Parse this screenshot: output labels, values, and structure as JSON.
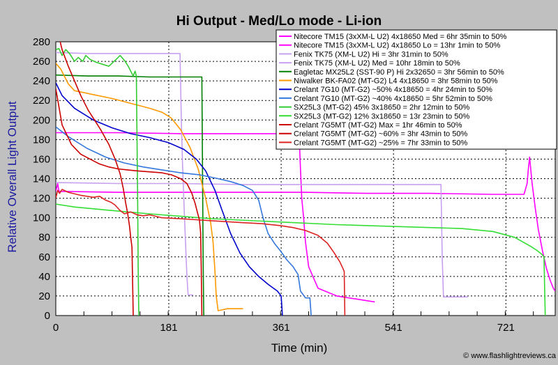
{
  "chart_data": {
    "type": "line",
    "title": "Hi Output - Med/Lo mode - Li-ion",
    "xlabel": "Time (min)",
    "ylabel": "Relative Overall Light Output",
    "xlim": [
      0,
      800
    ],
    "ylim": [
      0,
      280
    ],
    "xticks": [
      0,
      181,
      361,
      541,
      721
    ],
    "yticks": [
      0,
      20,
      40,
      60,
      80,
      100,
      120,
      140,
      160,
      180,
      200,
      220,
      240,
      260,
      280
    ],
    "grid": true,
    "legend_position": "top-right",
    "credit": "© www.flashlightreviews.ca",
    "series": [
      {
        "name": "Nitecore TM15 (3xXM-L U2) 4x18650 Med = 6hr 35min to 50%",
        "color": "#ff00ff",
        "points": [
          [
            0,
            187
          ],
          [
            100,
            187
          ],
          [
            200,
            186
          ],
          [
            300,
            186
          ],
          [
            375,
            186
          ],
          [
            385,
            184
          ],
          [
            390,
            180
          ],
          [
            392,
            150
          ],
          [
            394,
            120
          ],
          [
            397,
            100
          ],
          [
            400,
            75
          ],
          [
            405,
            50
          ],
          [
            420,
            28
          ],
          [
            450,
            20
          ],
          [
            480,
            17
          ],
          [
            500,
            15
          ],
          [
            511,
            14
          ]
        ]
      },
      {
        "name": "Nitecore TM15 (3xXM-L U2) 4x18650 Lo = 13hr 1min to 50%",
        "color": "#ff00ff",
        "points": [
          [
            0,
            127
          ],
          [
            3,
            135
          ],
          [
            5,
            127
          ],
          [
            100,
            126
          ],
          [
            200,
            126
          ],
          [
            300,
            126
          ],
          [
            400,
            126
          ],
          [
            500,
            125
          ],
          [
            600,
            125
          ],
          [
            700,
            124
          ],
          [
            750,
            124
          ],
          [
            755,
            135
          ],
          [
            757,
            150
          ],
          [
            759,
            162
          ],
          [
            763,
            135
          ],
          [
            768,
            110
          ],
          [
            773,
            88
          ],
          [
            780,
            65
          ],
          [
            786,
            48
          ],
          [
            792,
            36
          ],
          [
            797,
            28
          ],
          [
            800,
            25
          ]
        ]
      },
      {
        "name": "Fenix TK75 (XM-L U2) Hi = 3hr 31min to 50%",
        "color": "#c8a0f0",
        "points": [
          [
            0,
            269
          ],
          [
            50,
            268
          ],
          [
            100,
            268
          ],
          [
            150,
            268
          ],
          [
            199,
            268
          ],
          [
            201,
            202
          ],
          [
            203,
            155
          ],
          [
            206,
            102
          ],
          [
            210,
            40
          ],
          [
            212,
            21
          ],
          [
            220,
            21
          ]
        ]
      },
      {
        "name": "Fenix TK75 (XM-L U2) Med = 10hr 18min to 50%",
        "color": "#c8a0f0",
        "points": [
          [
            0,
            136
          ],
          [
            100,
            135
          ],
          [
            200,
            135
          ],
          [
            300,
            134
          ],
          [
            400,
            134
          ],
          [
            500,
            134
          ],
          [
            600,
            134
          ],
          [
            617,
            134
          ],
          [
            619,
            60
          ],
          [
            621,
            19
          ],
          [
            660,
            19
          ]
        ]
      },
      {
        "name": "Eagletac MX25L2 (SST-90 P) Hi 2x32650 = 3hr 56min to 50%",
        "color": "#008000",
        "points": [
          [
            0,
            246
          ],
          [
            50,
            245
          ],
          [
            100,
            245
          ],
          [
            150,
            244
          ],
          [
            200,
            244
          ],
          [
            234,
            244
          ],
          [
            236,
            60
          ],
          [
            237,
            0
          ]
        ]
      },
      {
        "name": "Niwalker BK-FA02 (MT-G2) L4 4x18650 = 3hr 58min to 50%",
        "color": "#ff9900",
        "points": [
          [
            0,
            258
          ],
          [
            8,
            252
          ],
          [
            20,
            237
          ],
          [
            30,
            230
          ],
          [
            60,
            226
          ],
          [
            90,
            222
          ],
          [
            120,
            217
          ],
          [
            150,
            212
          ],
          [
            170,
            208
          ],
          [
            185,
            202
          ],
          [
            200,
            190
          ],
          [
            215,
            172
          ],
          [
            228,
            150
          ],
          [
            240,
            120
          ],
          [
            248,
            95
          ],
          [
            252,
            75
          ],
          [
            255,
            45
          ],
          [
            257,
            20
          ],
          [
            260,
            5
          ],
          [
            275,
            7
          ],
          [
            290,
            7
          ],
          [
            300,
            7
          ]
        ]
      },
      {
        "name": "Crelant 7G10 (MT-G2) ~50% 4x18650 = 4hr 24min to 50%",
        "color": "#0000cc",
        "points": [
          [
            0,
            238
          ],
          [
            10,
            225
          ],
          [
            30,
            212
          ],
          [
            60,
            200
          ],
          [
            90,
            192
          ],
          [
            120,
            186
          ],
          [
            150,
            182
          ],
          [
            180,
            177
          ],
          [
            205,
            170
          ],
          [
            225,
            160
          ],
          [
            240,
            148
          ],
          [
            255,
            128
          ],
          [
            265,
            110
          ],
          [
            280,
            84
          ],
          [
            295,
            64
          ],
          [
            310,
            50
          ],
          [
            325,
            40
          ],
          [
            340,
            32
          ],
          [
            355,
            25
          ],
          [
            361,
            20
          ],
          [
            363,
            0
          ]
        ]
      },
      {
        "name": "Crelant 7G10 (MT-G2) ~40% 4x18650 = 5hr 52min to 50%",
        "color": "#3377dd",
        "points": [
          [
            0,
            193
          ],
          [
            20,
            183
          ],
          [
            50,
            171
          ],
          [
            80,
            162
          ],
          [
            110,
            156
          ],
          [
            140,
            152
          ],
          [
            170,
            149
          ],
          [
            200,
            146
          ],
          [
            230,
            144
          ],
          [
            260,
            140
          ],
          [
            280,
            137
          ],
          [
            300,
            133
          ],
          [
            315,
            128
          ],
          [
            325,
            118
          ],
          [
            332,
            100
          ],
          [
            340,
            84
          ],
          [
            350,
            74
          ],
          [
            360,
            66
          ],
          [
            370,
            57
          ],
          [
            380,
            50
          ],
          [
            388,
            42
          ],
          [
            392,
            25
          ],
          [
            400,
            18
          ],
          [
            407,
            18
          ],
          [
            409,
            0
          ]
        ]
      },
      {
        "name": "SX25L3 (MT-G2) 45% 3x18650 = 2hr 12min to 50%",
        "color": "#33cc33",
        "points": [
          [
            0,
            272
          ],
          [
            5,
            273
          ],
          [
            10,
            266
          ],
          [
            16,
            272
          ],
          [
            22,
            268
          ],
          [
            30,
            260
          ],
          [
            36,
            264
          ],
          [
            43,
            260
          ],
          [
            48,
            266
          ],
          [
            55,
            262
          ],
          [
            65,
            259
          ],
          [
            75,
            257
          ],
          [
            85,
            255
          ],
          [
            95,
            261
          ],
          [
            103,
            266
          ],
          [
            110,
            261
          ],
          [
            116,
            255
          ],
          [
            120,
            250
          ],
          [
            124,
            245
          ],
          [
            127,
            250
          ],
          [
            129,
            245
          ],
          [
            131,
            130
          ],
          [
            132,
            50
          ],
          [
            133,
            0
          ]
        ]
      },
      {
        "name": "SX25L3 (MT-G2) 12% 3x18650 = 13r 23min to 50%",
        "color": "#33dd33",
        "points": [
          [
            0,
            114
          ],
          [
            30,
            111
          ],
          [
            80,
            108
          ],
          [
            150,
            104
          ],
          [
            250,
            99
          ],
          [
            350,
            96
          ],
          [
            450,
            93
          ],
          [
            550,
            91
          ],
          [
            650,
            89
          ],
          [
            700,
            86
          ],
          [
            735,
            80
          ],
          [
            760,
            71
          ],
          [
            770,
            67
          ],
          [
            778,
            63
          ],
          [
            782,
            60
          ],
          [
            783,
            30
          ],
          [
            784,
            0
          ]
        ]
      },
      {
        "name": "Crelant 7G5MT (MT-G2) Max = 1hr 46min to 50%",
        "color": "#cc0000",
        "points": [
          [
            7,
            280
          ],
          [
            10,
            272
          ],
          [
            20,
            255
          ],
          [
            30,
            240
          ],
          [
            40,
            225
          ],
          [
            52,
            210
          ],
          [
            62,
            200
          ],
          [
            72,
            190
          ],
          [
            85,
            175
          ],
          [
            95,
            160
          ],
          [
            103,
            145
          ],
          [
            108,
            130
          ],
          [
            112,
            115
          ],
          [
            115,
            105
          ],
          [
            118,
            92
          ],
          [
            120,
            80
          ],
          [
            122,
            70
          ],
          [
            124,
            0
          ]
        ]
      },
      {
        "name": "Crelant 7G5MT (MT-G2) ~60% = 3hr 43min to 50%",
        "color": "#cc0000",
        "points": [
          [
            0,
            232
          ],
          [
            10,
            195
          ],
          [
            25,
            175
          ],
          [
            40,
            165
          ],
          [
            55,
            160
          ],
          [
            70,
            155
          ],
          [
            85,
            152
          ],
          [
            100,
            150
          ],
          [
            115,
            149
          ],
          [
            130,
            148
          ],
          [
            150,
            147
          ],
          [
            170,
            146
          ],
          [
            185,
            144
          ],
          [
            200,
            140
          ],
          [
            210,
            135
          ],
          [
            218,
            125
          ],
          [
            223,
            115
          ],
          [
            227,
            105
          ],
          [
            230,
            98
          ],
          [
            232,
            85
          ],
          [
            233,
            50
          ],
          [
            234,
            0
          ]
        ]
      },
      {
        "name": "Crelant 7G5MT (MT-G2) ~25% = 7hr 33min to 50%",
        "color": "#dd2222",
        "points": [
          [
            0,
            120
          ],
          [
            3,
            128
          ],
          [
            6,
            125
          ],
          [
            10,
            129
          ],
          [
            20,
            126
          ],
          [
            40,
            123
          ],
          [
            60,
            121
          ],
          [
            70,
            122
          ],
          [
            80,
            118
          ],
          [
            88,
            116
          ],
          [
            95,
            113
          ],
          [
            102,
            108
          ],
          [
            110,
            104
          ],
          [
            120,
            106
          ],
          [
            130,
            103
          ],
          [
            140,
            102
          ],
          [
            150,
            103
          ],
          [
            170,
            100
          ],
          [
            200,
            99
          ],
          [
            250,
            97
          ],
          [
            300,
            95
          ],
          [
            330,
            94
          ],
          [
            360,
            92
          ],
          [
            380,
            90
          ],
          [
            400,
            87
          ],
          [
            420,
            82
          ],
          [
            435,
            74
          ],
          [
            445,
            65
          ],
          [
            455,
            55
          ],
          [
            460,
            48
          ],
          [
            462,
            45
          ],
          [
            463,
            0
          ]
        ]
      }
    ]
  }
}
